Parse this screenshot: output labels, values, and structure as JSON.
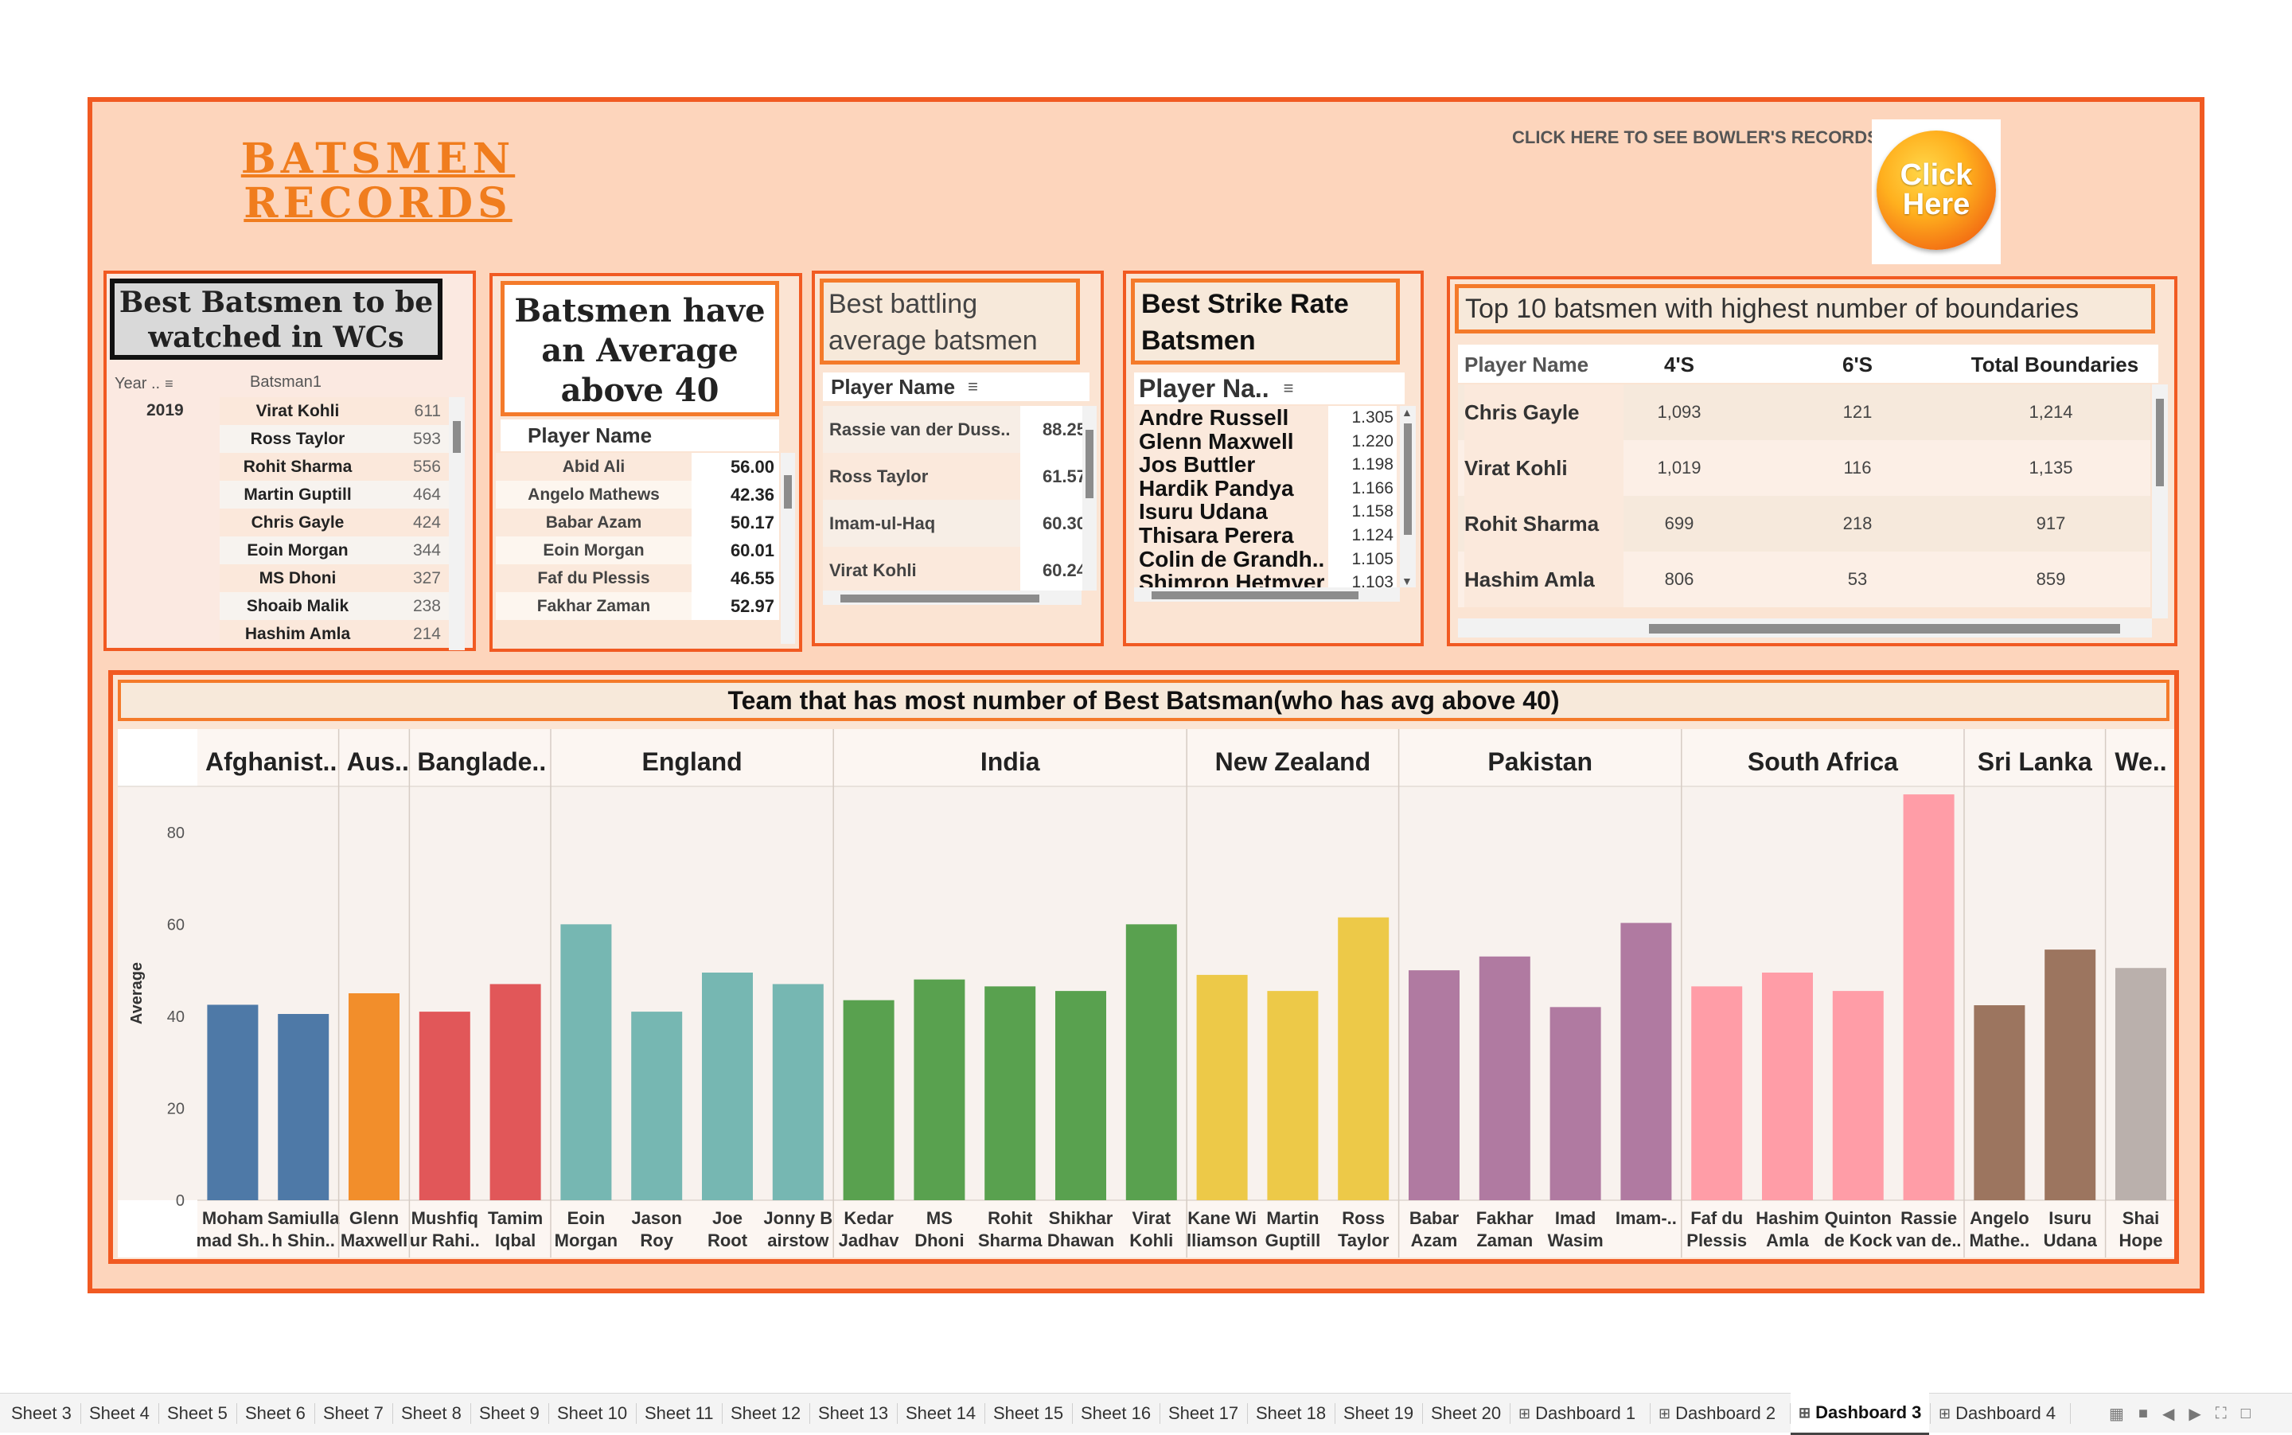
{
  "dashboard": {
    "title_line1": "BATSMEN",
    "title_line2": "RECORDS",
    "bowler_link_label": "CLICK HERE TO SEE BOWLER'S RECORDS",
    "click_button_line1": "Click",
    "click_button_line2": "Here"
  },
  "best_batsmen": {
    "title": "Best Batsmen to be watched in WCs",
    "col_year": "Year ..",
    "col_batsman": "Batsman1",
    "year": "2019",
    "rows": [
      {
        "name": "Virat Kohli",
        "value": "611"
      },
      {
        "name": "Ross Taylor",
        "value": "593"
      },
      {
        "name": "Rohit Sharma",
        "value": "556"
      },
      {
        "name": "Martin Guptill",
        "value": "464"
      },
      {
        "name": "Chris Gayle",
        "value": "424"
      },
      {
        "name": "Eoin Morgan",
        "value": "344"
      },
      {
        "name": "MS Dhoni",
        "value": "327"
      },
      {
        "name": "Shoaib Malik",
        "value": "238"
      },
      {
        "name": "Hashim Amla",
        "value": "214"
      }
    ]
  },
  "avg_above_40": {
    "title": "Batsmen have an Average above 40",
    "col_player": "Player Name",
    "rows": [
      {
        "name": "Abid Ali",
        "value": "56.00"
      },
      {
        "name": "Angelo Mathews",
        "value": "42.36"
      },
      {
        "name": "Babar Azam",
        "value": "50.17"
      },
      {
        "name": "Eoin Morgan",
        "value": "60.01"
      },
      {
        "name": "Faf du Plessis",
        "value": "46.55"
      },
      {
        "name": "Fakhar Zaman",
        "value": "52.97"
      }
    ]
  },
  "best_batting_avg": {
    "title": "Best battling average batsmen",
    "col_player": "Player Name",
    "rows": [
      {
        "name": "Rassie van der Duss..",
        "value": "88.25"
      },
      {
        "name": "Ross Taylor",
        "value": "61.57"
      },
      {
        "name": "Imam-ul-Haq",
        "value": "60.30"
      },
      {
        "name": "Virat Kohli",
        "value": "60.24"
      }
    ]
  },
  "strike_rate": {
    "title": "Best Strike Rate Batsmen",
    "col_player": "Player Na..",
    "rows": [
      {
        "name": "Andre Russell",
        "value": "1.305"
      },
      {
        "name": "Glenn Maxwell",
        "value": "1.220"
      },
      {
        "name": "Jos Buttler",
        "value": "1.198"
      },
      {
        "name": "Hardik Pandya",
        "value": "1.166"
      },
      {
        "name": "Isuru Udana",
        "value": "1.158"
      },
      {
        "name": "Thisara Perera",
        "value": "1.124"
      },
      {
        "name": "Colin de Grandh..",
        "value": "1.105"
      },
      {
        "name": "Shimron Hetmyer",
        "value": "1.103"
      }
    ]
  },
  "boundaries": {
    "title": "Top 10 batsmen with highest number of boundaries",
    "col_player": "Player Name",
    "col_fours": "4'S",
    "col_sixes": "6'S",
    "col_total": "Total Boundaries",
    "rows": [
      {
        "name": "Chris Gayle",
        "fours": "1,093",
        "sixes": "121",
        "total": "1,214"
      },
      {
        "name": "Virat Kohli",
        "fours": "1,019",
        "sixes": "116",
        "total": "1,135"
      },
      {
        "name": "Rohit Sharma",
        "fours": "699",
        "sixes": "218",
        "total": "917"
      },
      {
        "name": "Hashim Amla",
        "fours": "806",
        "sixes": "53",
        "total": "859"
      }
    ]
  },
  "team_chart_title": "Team that has most number of Best Batsman(who has avg above 40)",
  "chart_data": {
    "type": "bar",
    "ylabel": "Average",
    "ylim": [
      0,
      90
    ],
    "yticks": [
      0,
      20,
      40,
      60,
      80
    ],
    "groups": [
      {
        "team": "Afghanist..",
        "color": "#4e79a7",
        "players": [
          {
            "label": [
              "Moham",
              "mad Sh.."
            ],
            "value": 42.5
          },
          {
            "label": [
              "Samiulla",
              "h Shin.."
            ],
            "value": 40.5
          }
        ]
      },
      {
        "team": "Aus..",
        "color": "#f28e2b",
        "players": [
          {
            "label": [
              "Glenn",
              "Maxwell"
            ],
            "value": 45
          }
        ]
      },
      {
        "team": "Banglade..",
        "color": "#e15759",
        "players": [
          {
            "label": [
              "Mushfiq",
              "ur Rahi.."
            ],
            "value": 41
          },
          {
            "label": [
              "Tamim",
              "Iqbal"
            ],
            "value": 47
          }
        ]
      },
      {
        "team": "England",
        "color": "#76b7b2",
        "players": [
          {
            "label": [
              "Eoin",
              "Morgan"
            ],
            "value": 60
          },
          {
            "label": [
              "Jason",
              "Roy"
            ],
            "value": 41
          },
          {
            "label": [
              "Joe",
              "Root"
            ],
            "value": 49.5
          },
          {
            "label": [
              "Jonny B",
              "airstow"
            ],
            "value": 47
          }
        ]
      },
      {
        "team": "India",
        "color": "#59a14f",
        "players": [
          {
            "label": [
              "Kedar",
              "Jadhav"
            ],
            "value": 43.5
          },
          {
            "label": [
              "MS",
              "Dhoni"
            ],
            "value": 48
          },
          {
            "label": [
              "Rohit",
              "Sharma"
            ],
            "value": 46.5
          },
          {
            "label": [
              "Shikhar",
              "Dhawan"
            ],
            "value": 45.5
          },
          {
            "label": [
              "Virat",
              "Kohli"
            ],
            "value": 60
          }
        ]
      },
      {
        "team": "New Zealand",
        "color": "#edc948",
        "players": [
          {
            "label": [
              "Kane Wi",
              "lliamson"
            ],
            "value": 49
          },
          {
            "label": [
              "Martin",
              "Guptill"
            ],
            "value": 45.5
          },
          {
            "label": [
              "Ross",
              "Taylor"
            ],
            "value": 61.5
          }
        ]
      },
      {
        "team": "Pakistan",
        "color": "#b07aa1",
        "players": [
          {
            "label": [
              "Babar",
              "Azam"
            ],
            "value": 50
          },
          {
            "label": [
              "Fakhar",
              "Zaman"
            ],
            "value": 53
          },
          {
            "label": [
              "Imad",
              "Wasim"
            ],
            "value": 42
          },
          {
            "label": [
              "Imam-..",
              ""
            ],
            "value": 60.3
          }
        ]
      },
      {
        "team": "South Africa",
        "color": "#ff9da7",
        "players": [
          {
            "label": [
              "Faf du",
              "Plessis"
            ],
            "value": 46.5
          },
          {
            "label": [
              "Hashim",
              "Amla"
            ],
            "value": 49.5
          },
          {
            "label": [
              "Quinton",
              "de Kock"
            ],
            "value": 45.5
          },
          {
            "label": [
              "Rassie",
              "van de.."
            ],
            "value": 88.25
          }
        ]
      },
      {
        "team": "Sri Lanka",
        "color": "#9c755f",
        "players": [
          {
            "label": [
              "Angelo",
              "Mathe.."
            ],
            "value": 42.4
          },
          {
            "label": [
              "Isuru",
              "Udana"
            ],
            "value": 54.5
          }
        ]
      },
      {
        "team": "We..",
        "color": "#bab0ac",
        "players": [
          {
            "label": [
              "Shai",
              "Hope"
            ],
            "value": 50.5
          }
        ]
      }
    ]
  },
  "tabs": [
    {
      "label": "Sheet 3"
    },
    {
      "label": "Sheet 4"
    },
    {
      "label": "Sheet 5"
    },
    {
      "label": "Sheet 6"
    },
    {
      "label": "Sheet 7"
    },
    {
      "label": "Sheet 8"
    },
    {
      "label": "Sheet 9"
    },
    {
      "label": "Sheet 10"
    },
    {
      "label": "Sheet 11"
    },
    {
      "label": "Sheet 12"
    },
    {
      "label": "Sheet 13"
    },
    {
      "label": "Sheet 14"
    },
    {
      "label": "Sheet 15"
    },
    {
      "label": "Sheet 16"
    },
    {
      "label": "Sheet 17"
    },
    {
      "label": "Sheet 18"
    },
    {
      "label": "Sheet 19"
    },
    {
      "label": "Sheet 20"
    },
    {
      "label": "Dashboard 1",
      "dashboard": true
    },
    {
      "label": "Dashboard 2",
      "dashboard": true
    },
    {
      "label": "Dashboard 3",
      "dashboard": true,
      "active": true
    },
    {
      "label": "Dashboard 4",
      "dashboard": true
    }
  ]
}
